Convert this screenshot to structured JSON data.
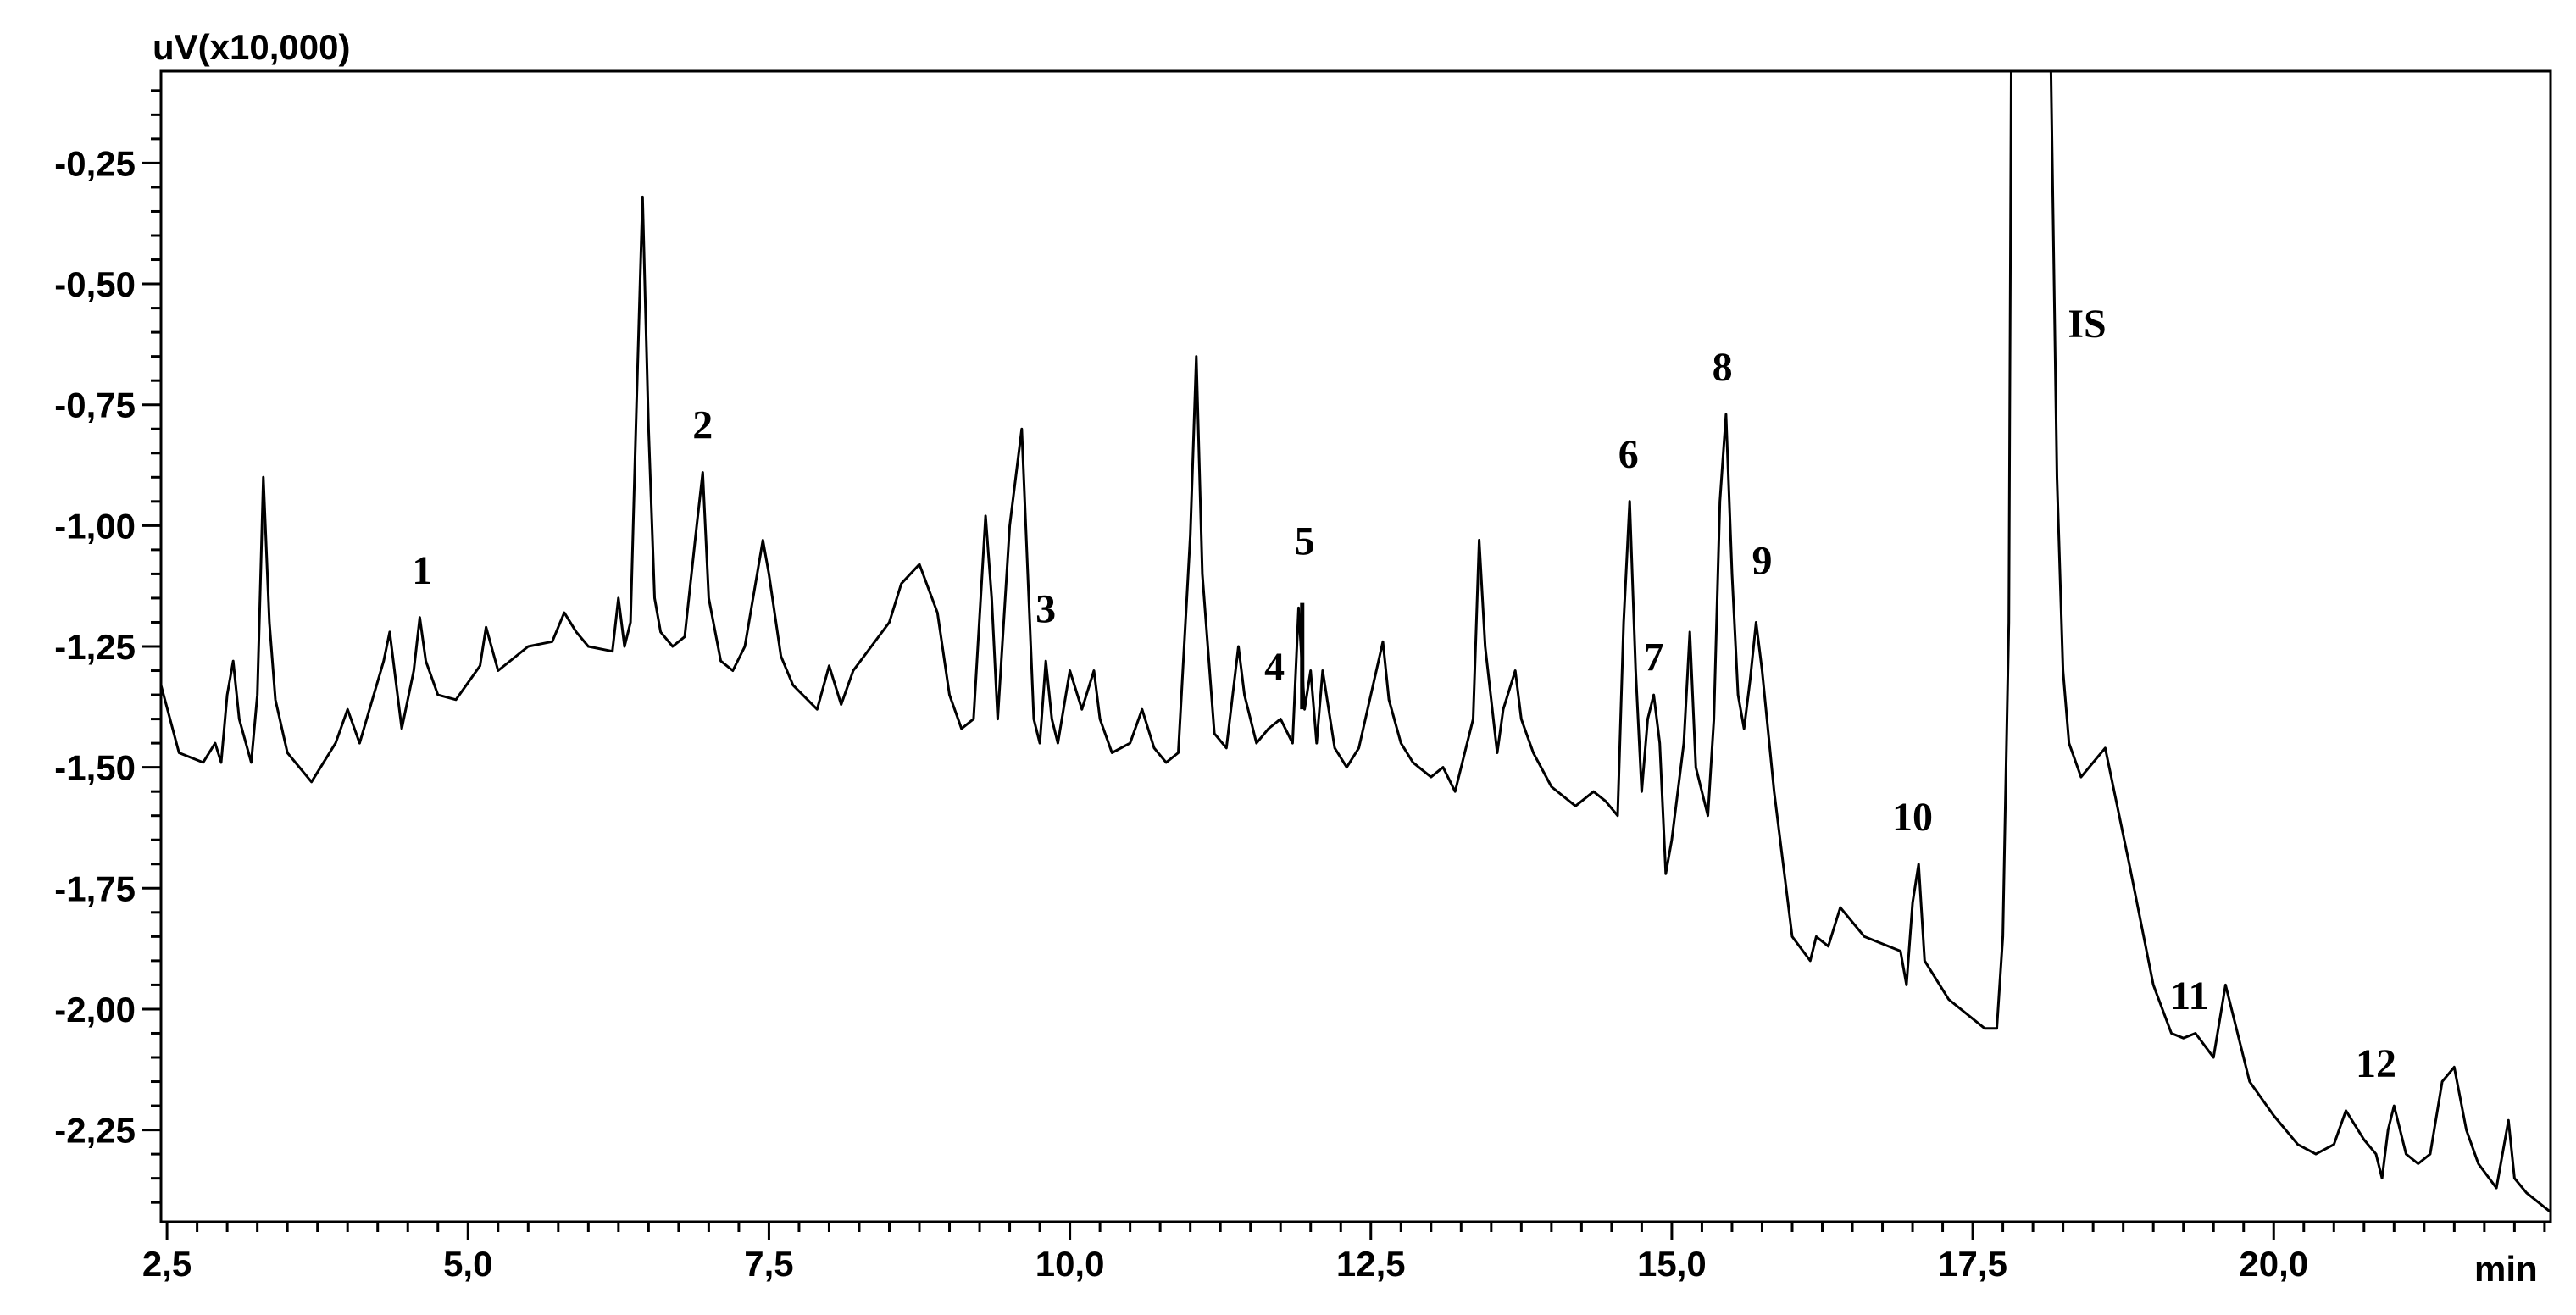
{
  "chart_data": {
    "type": "line",
    "ylabel": "uV(x10,000)",
    "xlabel": "min",
    "xlim": [
      2.45,
      22.3
    ],
    "ylim": [
      -2.44,
      -0.06
    ],
    "x_ticks": [
      {
        "value": 2.5,
        "label": "2,5"
      },
      {
        "value": 5.0,
        "label": "5,0"
      },
      {
        "value": 7.5,
        "label": "7,5"
      },
      {
        "value": 10.0,
        "label": "10,0"
      },
      {
        "value": 12.5,
        "label": "12,5"
      },
      {
        "value": 15.0,
        "label": "15,0"
      },
      {
        "value": 17.5,
        "label": "17,5"
      },
      {
        "value": 20.0,
        "label": "20,0"
      }
    ],
    "y_ticks": [
      {
        "value": -0.25,
        "label": "-0,25"
      },
      {
        "value": -0.5,
        "label": "-0,50"
      },
      {
        "value": -0.75,
        "label": "-0,75"
      },
      {
        "value": -1.0,
        "label": "-1,00"
      },
      {
        "value": -1.25,
        "label": "-1,25"
      },
      {
        "value": -1.5,
        "label": "-1,50"
      },
      {
        "value": -1.75,
        "label": "-1,75"
      },
      {
        "value": -2.0,
        "label": "-2,00"
      },
      {
        "value": -2.25,
        "label": "-2,25"
      }
    ],
    "series": [
      {
        "x": [
          2.45,
          2.6,
          2.8,
          2.9,
          2.95,
          3.0,
          3.05,
          3.1,
          3.2,
          3.25,
          3.3,
          3.35,
          3.4,
          3.5,
          3.7,
          3.9,
          4.0,
          4.1,
          4.3,
          4.35,
          4.45,
          4.55,
          4.6,
          4.65,
          4.75,
          4.9,
          5.1,
          5.15,
          5.25,
          5.5,
          5.7,
          5.8,
          5.9,
          6.0,
          6.2,
          6.25,
          6.3,
          6.35,
          6.4,
          6.45,
          6.5,
          6.55,
          6.6,
          6.7,
          6.8,
          6.9,
          6.95,
          7.0,
          7.1,
          7.2,
          7.3,
          7.45,
          7.5,
          7.6,
          7.7,
          7.9,
          8.0,
          8.1,
          8.2,
          8.35,
          8.5,
          8.6,
          8.75,
          8.9,
          9.0,
          9.1,
          9.2,
          9.3,
          9.35,
          9.4,
          9.5,
          9.6,
          9.65,
          9.7,
          9.75,
          9.8,
          9.85,
          9.9,
          10.0,
          10.1,
          10.2,
          10.25,
          10.35,
          10.5,
          10.6,
          10.7,
          10.8,
          10.9,
          11.0,
          11.05,
          11.1,
          11.2,
          11.3,
          11.4,
          11.45,
          11.55,
          11.65,
          11.75,
          11.85,
          11.9,
          11.95,
          12.0,
          12.05,
          12.1,
          12.2,
          12.3,
          12.4,
          12.6,
          12.65,
          12.75,
          12.85,
          13.0,
          13.1,
          13.2,
          13.35,
          13.4,
          13.45,
          13.55,
          13.6,
          13.7,
          13.75,
          13.85,
          14.0,
          14.2,
          14.35,
          14.45,
          14.55,
          14.6,
          14.65,
          14.7,
          14.75,
          14.8,
          14.85,
          14.9,
          14.95,
          15.0,
          15.05,
          15.1,
          15.15,
          15.2,
          15.3,
          15.35,
          15.4,
          15.45,
          15.5,
          15.55,
          15.6,
          15.65,
          15.7,
          15.75,
          15.85,
          16.0,
          16.15,
          16.2,
          16.3,
          16.4,
          16.6,
          16.9,
          16.95,
          17.0,
          17.05,
          17.1,
          17.3,
          17.6,
          17.7,
          17.75,
          17.8,
          17.82,
          17.9,
          18.0,
          18.05,
          18.1,
          18.15,
          18.2,
          18.25,
          18.3,
          18.4,
          18.6,
          18.8,
          19.0,
          19.15,
          19.25,
          19.35,
          19.5,
          19.6,
          19.8,
          20.0,
          20.2,
          20.35,
          20.5,
          20.6,
          20.75,
          20.85,
          20.9,
          20.95,
          21.0,
          21.1,
          21.2,
          21.3,
          21.4,
          21.5,
          21.6,
          21.7,
          21.85,
          21.95,
          22.0,
          22.1,
          22.3
        ],
        "y": [
          -1.33,
          -1.47,
          -1.49,
          -1.45,
          -1.49,
          -1.35,
          -1.28,
          -1.4,
          -1.49,
          -1.35,
          -0.9,
          -1.2,
          -1.36,
          -1.47,
          -1.53,
          -1.45,
          -1.38,
          -1.45,
          -1.28,
          -1.22,
          -1.42,
          -1.3,
          -1.19,
          -1.28,
          -1.35,
          -1.36,
          -1.29,
          -1.21,
          -1.3,
          -1.25,
          -1.24,
          -1.18,
          -1.22,
          -1.25,
          -1.26,
          -1.15,
          -1.25,
          -1.2,
          -0.75,
          -0.32,
          -0.8,
          -1.15,
          -1.22,
          -1.25,
          -1.23,
          -1.0,
          -0.89,
          -1.15,
          -1.28,
          -1.3,
          -1.25,
          -1.03,
          -1.1,
          -1.27,
          -1.33,
          -1.38,
          -1.29,
          -1.37,
          -1.3,
          -1.25,
          -1.2,
          -1.12,
          -1.08,
          -1.18,
          -1.35,
          -1.42,
          -1.4,
          -0.98,
          -1.15,
          -1.4,
          -1.0,
          -0.8,
          -1.1,
          -1.4,
          -1.45,
          -1.28,
          -1.4,
          -1.45,
          -1.3,
          -1.38,
          -1.3,
          -1.4,
          -1.47,
          -1.45,
          -1.38,
          -1.46,
          -1.49,
          -1.47,
          -1.02,
          -0.65,
          -1.1,
          -1.43,
          -1.46,
          -1.25,
          -1.35,
          -1.45,
          -1.42,
          -1.4,
          -1.45,
          -1.17,
          -1.38,
          -1.3,
          -1.45,
          -1.3,
          -1.46,
          -1.5,
          -1.46,
          -1.24,
          -1.36,
          -1.45,
          -1.49,
          -1.52,
          -1.5,
          -1.55,
          -1.4,
          -1.03,
          -1.25,
          -1.47,
          -1.38,
          -1.3,
          -1.4,
          -1.47,
          -1.54,
          -1.58,
          -1.55,
          -1.57,
          -1.6,
          -1.2,
          -0.95,
          -1.3,
          -1.55,
          -1.4,
          -1.35,
          -1.45,
          -1.72,
          -1.65,
          -1.55,
          -1.45,
          -1.22,
          -1.5,
          -1.6,
          -1.4,
          -0.95,
          -0.77,
          -1.1,
          -1.35,
          -1.42,
          -1.32,
          -1.2,
          -1.3,
          -1.55,
          -1.85,
          -1.9,
          -1.85,
          -1.87,
          -1.79,
          -1.85,
          -1.88,
          -1.95,
          -1.78,
          -1.7,
          -1.9,
          -1.98,
          -2.04,
          -2.04,
          -1.85,
          -1.2,
          -0.06,
          -0.06,
          -0.06,
          -0.06,
          -0.06,
          -0.06,
          -0.9,
          -1.3,
          -1.45,
          -1.52,
          -1.46,
          -1.7,
          -1.95,
          -2.05,
          -2.06,
          -2.05,
          -2.1,
          -1.95,
          -2.15,
          -2.22,
          -2.28,
          -2.3,
          -2.28,
          -2.21,
          -2.27,
          -2.3,
          -2.35,
          -2.25,
          -2.2,
          -2.3,
          -2.32,
          -2.3,
          -2.15,
          -2.12,
          -2.25,
          -2.32,
          -2.37,
          -2.23,
          -2.35,
          -2.38,
          -2.42
        ]
      }
    ],
    "peak_labels": [
      {
        "label": "1",
        "x": 4.62,
        "y": -1.12
      },
      {
        "label": "2",
        "x": 6.95,
        "y": -0.82
      },
      {
        "label": "3",
        "x": 9.8,
        "y": -1.2
      },
      {
        "label": "4",
        "x": 11.7,
        "y": -1.32
      },
      {
        "label": "5",
        "x": 11.95,
        "y": -1.06
      },
      {
        "label": "6",
        "x": 14.64,
        "y": -0.88
      },
      {
        "label": "7",
        "x": 14.85,
        "y": -1.3
      },
      {
        "label": "8",
        "x": 15.42,
        "y": -0.7
      },
      {
        "label": "9",
        "x": 15.75,
        "y": -1.1
      },
      {
        "label": "10",
        "x": 17.0,
        "y": -1.63
      },
      {
        "label": "IS",
        "x": 18.45,
        "y": -0.61
      },
      {
        "label": "11",
        "x": 19.3,
        "y": -2.0
      },
      {
        "label": "12",
        "x": 20.85,
        "y": -2.14
      }
    ],
    "grid": false,
    "legend": "none",
    "line_color": "#000000"
  }
}
